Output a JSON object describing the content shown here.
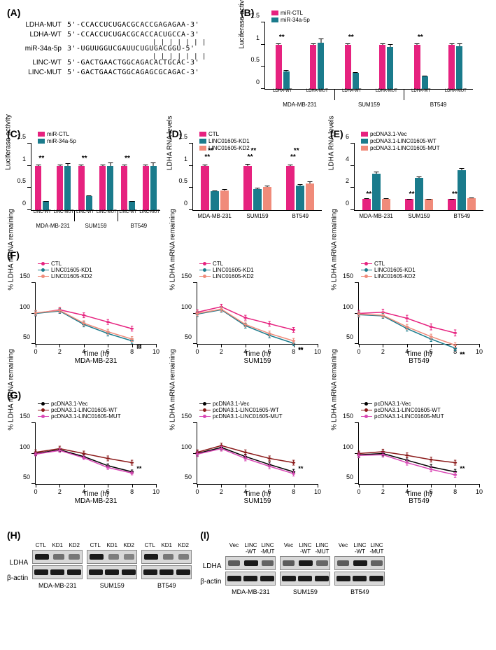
{
  "colors": {
    "pink": "#e6227f",
    "teal": "#1a7b8c",
    "salmon": "#f08b7a",
    "darkred": "#8b1a1a",
    "magenta": "#d946b5",
    "black": "#000000",
    "white": "#ffffff"
  },
  "panelA": {
    "label": "(A)",
    "sequences": [
      {
        "name": "LDHA-MUT",
        "seq": "5'-CCACCUCUGACGCACCGAGAGAA-3'"
      },
      {
        "name": "LDHA-WT",
        "seq": "5'-CCACCUCUGACGCACCACUGCCA-3'"
      },
      {
        "name": "miR-34a-5p",
        "seq": "3'-UGUUGGUCGAUUCUGUGACGGU-5'"
      },
      {
        "name": "LINC-WT",
        "seq": "5'-GACTGAACTGGCAGACACTGCAC-3'"
      },
      {
        "name": "LINC-MUT",
        "seq": "5'-GACTGAACTGGCAGAGCGCAGAC-3'"
      }
    ],
    "bonds1": "| | | | | | |",
    "bonds2": "| | | | | | |"
  },
  "panelB": {
    "label": "(B)",
    "ylabel": "Luciferase activity",
    "ymax": 1.5,
    "yticks": [
      0,
      0.5,
      1.0,
      1.5
    ],
    "legend": [
      {
        "label": "miR-CTL",
        "color": "pink"
      },
      {
        "label": "miR-34a-5p",
        "color": "teal"
      }
    ],
    "groups": [
      {
        "cell": "MDA-MB-231",
        "sub": [
          {
            "x": "LDHA-WT",
            "bars": [
              {
                "c": "pink",
                "v": 1.0,
                "e": 0.04,
                "sig": "**"
              },
              {
                "c": "teal",
                "v": 0.4,
                "e": 0.09
              }
            ]
          },
          {
            "x": "LDHA-MUT",
            "bars": [
              {
                "c": "pink",
                "v": 1.0,
                "e": 0.04
              },
              {
                "c": "teal",
                "v": 1.05,
                "e": 0.12
              }
            ]
          }
        ]
      },
      {
        "cell": "SUM159",
        "sub": [
          {
            "x": "LDHA-WT",
            "bars": [
              {
                "c": "pink",
                "v": 1.0,
                "e": 0.03,
                "sig": "**"
              },
              {
                "c": "teal",
                "v": 0.37,
                "e": 0.07
              }
            ]
          },
          {
            "x": "LDHA-MUT",
            "bars": [
              {
                "c": "pink",
                "v": 1.0,
                "e": 0.03
              },
              {
                "c": "teal",
                "v": 0.95,
                "e": 0.1
              }
            ]
          }
        ]
      },
      {
        "cell": "BT549",
        "sub": [
          {
            "x": "LDHA-WT",
            "bars": [
              {
                "c": "pink",
                "v": 1.0,
                "e": 0.03,
                "sig": "**"
              },
              {
                "c": "teal",
                "v": 0.28,
                "e": 0.1
              }
            ]
          },
          {
            "x": "LDHA-MUT",
            "bars": [
              {
                "c": "pink",
                "v": 1.0,
                "e": 0.03
              },
              {
                "c": "teal",
                "v": 0.97,
                "e": 0.09
              }
            ]
          }
        ]
      }
    ]
  },
  "panelC": {
    "label": "(C)",
    "ylabel": "Luciferase activity",
    "ymax": 1.5,
    "yticks": [
      0,
      0.5,
      1.0,
      1.5
    ],
    "legend": [
      {
        "label": "miR-CTL",
        "color": "pink"
      },
      {
        "label": "miR-34a-5p",
        "color": "teal"
      }
    ],
    "groups": [
      {
        "cell": "MDA-MB-231",
        "sub": [
          {
            "x": "LINC-WT",
            "bars": [
              {
                "c": "pink",
                "v": 1.0,
                "e": 0.03,
                "sig": "**"
              },
              {
                "c": "teal",
                "v": 0.2,
                "e": 0.06
              }
            ]
          },
          {
            "x": "LINC-MUT",
            "bars": [
              {
                "c": "pink",
                "v": 1.0,
                "e": 0.03
              },
              {
                "c": "teal",
                "v": 1.0,
                "e": 0.08
              }
            ]
          }
        ]
      },
      {
        "cell": "SUM159",
        "sub": [
          {
            "x": "LINC-WT",
            "bars": [
              {
                "c": "pink",
                "v": 1.0,
                "e": 0.03,
                "sig": "**"
              },
              {
                "c": "teal",
                "v": 0.32,
                "e": 0.06
              }
            ]
          },
          {
            "x": "LINC-MUT",
            "bars": [
              {
                "c": "pink",
                "v": 1.0,
                "e": 0.03
              },
              {
                "c": "teal",
                "v": 1.0,
                "e": 0.1
              }
            ]
          }
        ]
      },
      {
        "cell": "BT549",
        "sub": [
          {
            "x": "LINC-WT",
            "bars": [
              {
                "c": "pink",
                "v": 1.0,
                "e": 0.03,
                "sig": "**"
              },
              {
                "c": "teal",
                "v": 0.2,
                "e": 0.05
              }
            ]
          },
          {
            "x": "LINC-MUT",
            "bars": [
              {
                "c": "pink",
                "v": 1.0,
                "e": 0.03
              },
              {
                "c": "teal",
                "v": 1.0,
                "e": 0.11
              }
            ]
          }
        ]
      }
    ]
  },
  "panelD": {
    "label": "(D)",
    "ylabel": "LDHA RNA levels",
    "ymax": 1.5,
    "yticks": [
      0,
      0.5,
      1.0,
      1.5
    ],
    "legend": [
      {
        "label": "CTL",
        "color": "pink"
      },
      {
        "label": "LINC01605-KD1",
        "color": "teal"
      },
      {
        "label": "LINC01605-KD2",
        "color": "salmon"
      }
    ],
    "groups": [
      {
        "cell": "MDA-MB-231",
        "bars": [
          {
            "c": "pink",
            "v": 1.0,
            "e": 0.05,
            "sig": "**",
            "sig2": "**"
          },
          {
            "c": "teal",
            "v": 0.42,
            "e": 0.08
          },
          {
            "c": "salmon",
            "v": 0.45,
            "e": 0.1
          }
        ]
      },
      {
        "cell": "SUM159",
        "bars": [
          {
            "c": "pink",
            "v": 1.0,
            "e": 0.06,
            "sig": "**",
            "sig2": "**"
          },
          {
            "c": "teal",
            "v": 0.47,
            "e": 0.09
          },
          {
            "c": "salmon",
            "v": 0.52,
            "e": 0.09
          }
        ]
      },
      {
        "cell": "BT549",
        "bars": [
          {
            "c": "pink",
            "v": 1.0,
            "e": 0.05,
            "sig": "**",
            "sig2": "**"
          },
          {
            "c": "teal",
            "v": 0.55,
            "e": 0.1
          },
          {
            "c": "salmon",
            "v": 0.6,
            "e": 0.11
          }
        ]
      }
    ]
  },
  "panelE": {
    "label": "(E)",
    "ylabel": "LDHA RNA levels",
    "ymax": 6,
    "yticks": [
      0,
      2,
      4,
      6
    ],
    "legend": [
      {
        "label": "pcDNA3.1-Vec",
        "color": "pink"
      },
      {
        "label": "pcDNA3.1-LINC01605-WT",
        "color": "teal"
      },
      {
        "label": "pcDNA3.1-LINC01605-MUT",
        "color": "salmon"
      }
    ],
    "groups": [
      {
        "cell": "MDA-MB-231",
        "bars": [
          {
            "c": "pink",
            "v": 1.0,
            "e": 0.3,
            "sig": "**"
          },
          {
            "c": "teal",
            "v": 3.3,
            "e": 0.3
          },
          {
            "c": "salmon",
            "v": 1.0,
            "e": 0.3
          }
        ]
      },
      {
        "cell": "SUM159",
        "bars": [
          {
            "c": "pink",
            "v": 1.0,
            "e": 0.25,
            "sig": "**"
          },
          {
            "c": "teal",
            "v": 2.9,
            "e": 0.3
          },
          {
            "c": "salmon",
            "v": 1.0,
            "e": 0.25
          }
        ]
      },
      {
        "cell": "BT549",
        "bars": [
          {
            "c": "pink",
            "v": 1.0,
            "e": 0.25,
            "sig": "**"
          },
          {
            "c": "teal",
            "v": 3.6,
            "e": 0.35
          },
          {
            "c": "salmon",
            "v": 1.1,
            "e": 0.3
          }
        ]
      }
    ]
  },
  "panelF": {
    "label": "(F)",
    "ylabel": "% LDHA mRNA remaining",
    "xlabel": "Time (h)",
    "ylim": [
      50,
      150
    ],
    "yticks": [
      50,
      100,
      150
    ],
    "xlim": [
      0,
      10
    ],
    "xticks": [
      0,
      2,
      4,
      6,
      8,
      10
    ],
    "legend": [
      {
        "label": "CTL",
        "color": "pink"
      },
      {
        "label": "LINC01605-KD1",
        "color": "teal"
      },
      {
        "label": "LINC01605-KD2",
        "color": "salmon"
      }
    ],
    "cells": [
      "MDA-MB-231",
      "SUM159",
      "BT549"
    ],
    "series": [
      [
        {
          "c": "pink",
          "pts": [
            [
              0,
              100
            ],
            [
              2,
              106
            ],
            [
              4,
              97
            ],
            [
              6,
              86
            ],
            [
              8,
              75
            ]
          ],
          "err": 4
        },
        {
          "c": "teal",
          "pts": [
            [
              0,
              100
            ],
            [
              2,
              104
            ],
            [
              4,
              82
            ],
            [
              6,
              67
            ],
            [
              8,
              55
            ]
          ],
          "err": 4,
          "sig": "**"
        },
        {
          "c": "salmon",
          "pts": [
            [
              0,
              101
            ],
            [
              2,
              105
            ],
            [
              4,
              84
            ],
            [
              6,
              70
            ],
            [
              8,
              58
            ]
          ],
          "err": 4,
          "sig": "**"
        }
      ],
      [
        {
          "c": "pink",
          "pts": [
            [
              0,
              102
            ],
            [
              2,
              111
            ],
            [
              4,
              93
            ],
            [
              6,
              83
            ],
            [
              8,
              73
            ]
          ],
          "err": 4
        },
        {
          "c": "teal",
          "pts": [
            [
              0,
              99
            ],
            [
              2,
              106
            ],
            [
              4,
              80
            ],
            [
              6,
              64
            ],
            [
              8,
              51
            ]
          ],
          "err": 4,
          "sig": "**"
        },
        {
          "c": "salmon",
          "pts": [
            [
              0,
              100
            ],
            [
              2,
              107
            ],
            [
              4,
              82
            ],
            [
              6,
              67
            ],
            [
              8,
              55
            ]
          ],
          "err": 4,
          "sig": "**"
        }
      ],
      [
        {
          "c": "pink",
          "pts": [
            [
              0,
              100
            ],
            [
              2,
              102
            ],
            [
              4,
              92
            ],
            [
              6,
              78
            ],
            [
              8,
              68
            ]
          ],
          "err": 5
        },
        {
          "c": "teal",
          "pts": [
            [
              0,
              98
            ],
            [
              2,
              96
            ],
            [
              4,
              75
            ],
            [
              6,
              58
            ],
            [
              8,
              43
            ]
          ],
          "err": 4,
          "sig": "**"
        },
        {
          "c": "salmon",
          "pts": [
            [
              0,
              99
            ],
            [
              2,
              97
            ],
            [
              4,
              78
            ],
            [
              6,
              62
            ],
            [
              8,
              48
            ]
          ],
          "err": 4,
          "sig": "**"
        }
      ]
    ]
  },
  "panelG": {
    "label": "(G)",
    "ylabel": "% LDHA mRNA remaining",
    "xlabel": "Time (h)",
    "ylim": [
      50,
      150
    ],
    "yticks": [
      50,
      100,
      150
    ],
    "xlim": [
      0,
      10
    ],
    "xticks": [
      0,
      2,
      4,
      6,
      8,
      10
    ],
    "legend": [
      {
        "label": "pcDNA3.1-Vec",
        "color": "black"
      },
      {
        "label": "pcDNA3.1-LINC01605-WT",
        "color": "darkred"
      },
      {
        "label": "pcDNA3.1-LINC01605-MUT",
        "color": "magenta"
      }
    ],
    "cells": [
      "MDA-MB-231",
      "SUM159",
      "BT549"
    ],
    "series": [
      [
        {
          "c": "black",
          "pts": [
            [
              0,
              100
            ],
            [
              2,
              106
            ],
            [
              4,
              95
            ],
            [
              6,
              80
            ],
            [
              8,
              70
            ]
          ],
          "err": 3
        },
        {
          "c": "darkred",
          "pts": [
            [
              0,
              102
            ],
            [
              2,
              108
            ],
            [
              4,
              100
            ],
            [
              6,
              92
            ],
            [
              8,
              85
            ]
          ],
          "err": 4,
          "sig": "**"
        },
        {
          "c": "magenta",
          "pts": [
            [
              0,
              99
            ],
            [
              2,
              105
            ],
            [
              4,
              93
            ],
            [
              6,
              77
            ],
            [
              8,
              68
            ]
          ],
          "err": 3
        }
      ],
      [
        {
          "c": "black",
          "pts": [
            [
              0,
              100
            ],
            [
              2,
              110
            ],
            [
              4,
              95
            ],
            [
              6,
              82
            ],
            [
              8,
              70
            ]
          ],
          "err": 4
        },
        {
          "c": "darkred",
          "pts": [
            [
              0,
              102
            ],
            [
              2,
              113
            ],
            [
              4,
              102
            ],
            [
              6,
              92
            ],
            [
              8,
              85
            ]
          ],
          "err": 4,
          "sig": "**"
        },
        {
          "c": "magenta",
          "pts": [
            [
              0,
              99
            ],
            [
              2,
              108
            ],
            [
              4,
              92
            ],
            [
              6,
              79
            ],
            [
              8,
              67
            ]
          ],
          "err": 4
        }
      ],
      [
        {
          "c": "black",
          "pts": [
            [
              0,
              98
            ],
            [
              2,
              100
            ],
            [
              4,
              89
            ],
            [
              6,
              78
            ],
            [
              8,
              70
            ]
          ],
          "err": 4
        },
        {
          "c": "darkred",
          "pts": [
            [
              0,
              100
            ],
            [
              2,
              103
            ],
            [
              4,
              97
            ],
            [
              6,
              90
            ],
            [
              8,
              85
            ]
          ],
          "err": 4,
          "sig": "**"
        },
        {
          "c": "magenta",
          "pts": [
            [
              0,
              97
            ],
            [
              2,
              98
            ],
            [
              4,
              85
            ],
            [
              6,
              74
            ],
            [
              8,
              65
            ]
          ],
          "err": 4
        }
      ]
    ]
  },
  "panelH": {
    "label": "(H)",
    "rows": [
      "LDHA",
      "β-actin"
    ],
    "lanes": [
      "CTL",
      "KD1",
      "KD2"
    ],
    "cells": [
      "MDA-MB-231",
      "SUM159",
      "BT549"
    ],
    "intensities": [
      [
        [
          1.0,
          0.35,
          0.3
        ],
        [
          1.0,
          1.0,
          1.0
        ]
      ],
      [
        [
          1.0,
          0.25,
          0.2
        ],
        [
          1.0,
          1.0,
          1.0
        ]
      ],
      [
        [
          1.0,
          0.3,
          0.25
        ],
        [
          1.0,
          1.0,
          1.0
        ]
      ]
    ]
  },
  "panelI": {
    "label": "(I)",
    "rows": [
      "LDHA",
      "β-actin"
    ],
    "lanes": [
      "Vec",
      "LINC -WT",
      "LINC -MUT"
    ],
    "cells": [
      "MDA-MB-231",
      "SUM159",
      "BT549"
    ],
    "intensities": [
      [
        [
          0.5,
          1.0,
          0.45
        ],
        [
          1.0,
          1.0,
          1.0
        ]
      ],
      [
        [
          0.5,
          1.0,
          0.42
        ],
        [
          1.0,
          1.0,
          1.0
        ]
      ],
      [
        [
          0.5,
          1.0,
          0.45
        ],
        [
          1.0,
          1.0,
          1.0
        ]
      ]
    ]
  }
}
